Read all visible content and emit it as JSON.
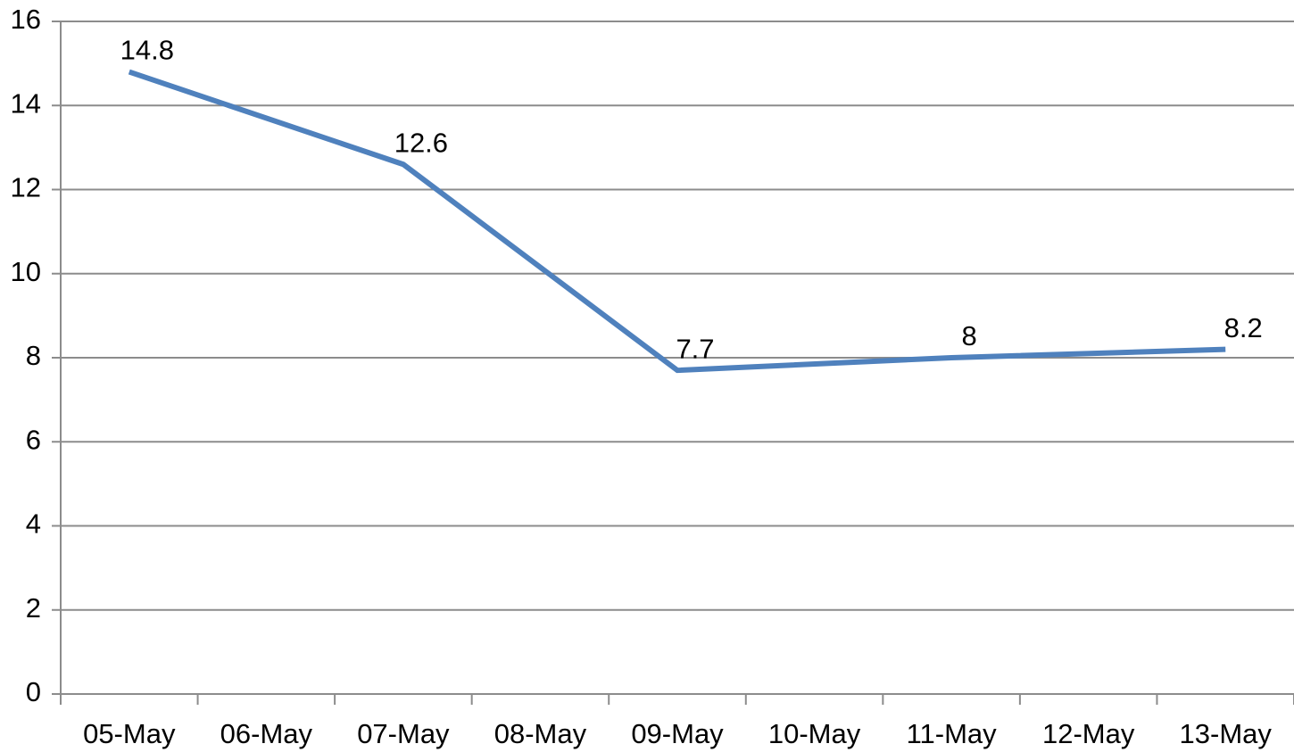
{
  "chart_data": {
    "type": "line",
    "categories": [
      "05-May",
      "06-May",
      "07-May",
      "08-May",
      "09-May",
      "10-May",
      "11-May",
      "12-May",
      "13-May"
    ],
    "series": [
      {
        "color": "#4f81bd",
        "x": [
          "05-May",
          "07-May",
          "09-May",
          "11-May",
          "13-May"
        ],
        "values": [
          14.8,
          12.6,
          7.7,
          8,
          8.2
        ]
      }
    ],
    "ylim": [
      0,
      16
    ],
    "yticks": [
      0,
      2,
      4,
      6,
      8,
      10,
      12,
      14,
      16
    ],
    "grid": true
  }
}
